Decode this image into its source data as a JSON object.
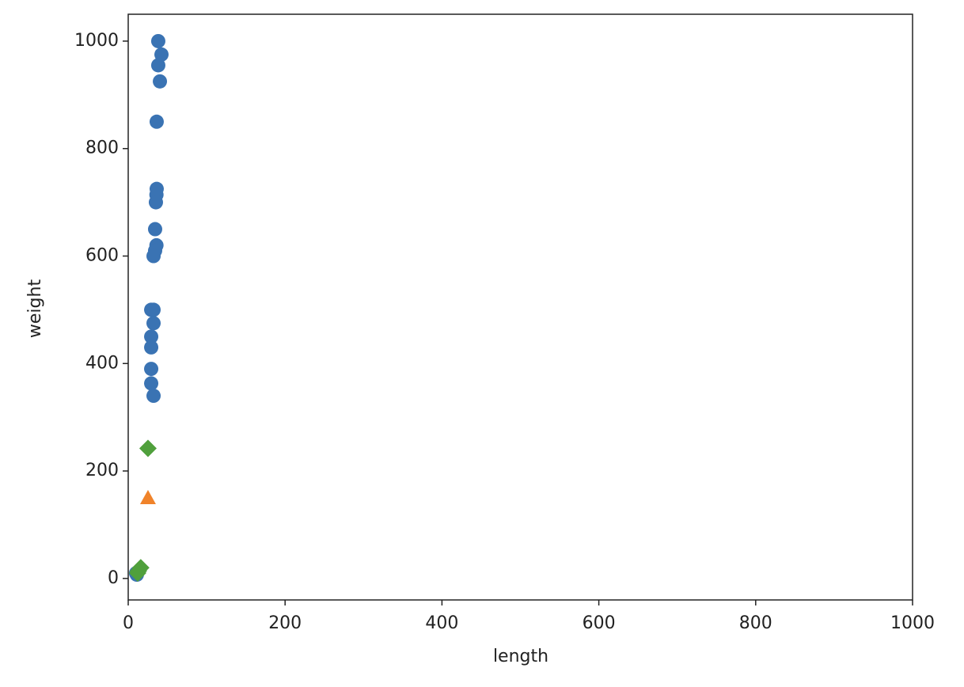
{
  "chart_data": {
    "type": "scatter",
    "x_label": "length",
    "y_label": "weight",
    "xlim": [
      0,
      1000
    ],
    "ylim": [
      -40,
      1050
    ],
    "xticks": [
      0,
      200,
      400,
      600,
      800,
      1000
    ],
    "yticks": [
      0,
      200,
      400,
      600,
      800,
      1000
    ],
    "grid": false,
    "series": [
      {
        "color": "#3a73b3",
        "marker": "circle",
        "x": [
          38.3,
          42.4,
          38.3,
          40.4,
          36.3,
          36.3,
          36,
          35.3,
          34.3,
          36,
          34.3,
          32.3,
          32.3,
          29.3,
          32.3,
          29.3,
          29.3,
          29.3,
          29.3,
          32.3,
          10,
          11
        ],
        "values": [
          1000,
          975,
          955,
          925,
          850,
          725,
          714,
          700,
          650,
          620,
          610,
          600,
          500,
          500,
          475,
          450,
          430,
          390,
          363,
          340,
          9.8,
          7
        ]
      },
      {
        "color": "#f0832a",
        "marker": "triangle",
        "x": [
          25.2
        ],
        "values": [
          150
        ]
      },
      {
        "color": "#50a03c",
        "marker": "diamond",
        "x": [
          25.2,
          16,
          13,
          12
        ],
        "values": [
          242,
          20,
          14,
          10
        ]
      }
    ]
  }
}
